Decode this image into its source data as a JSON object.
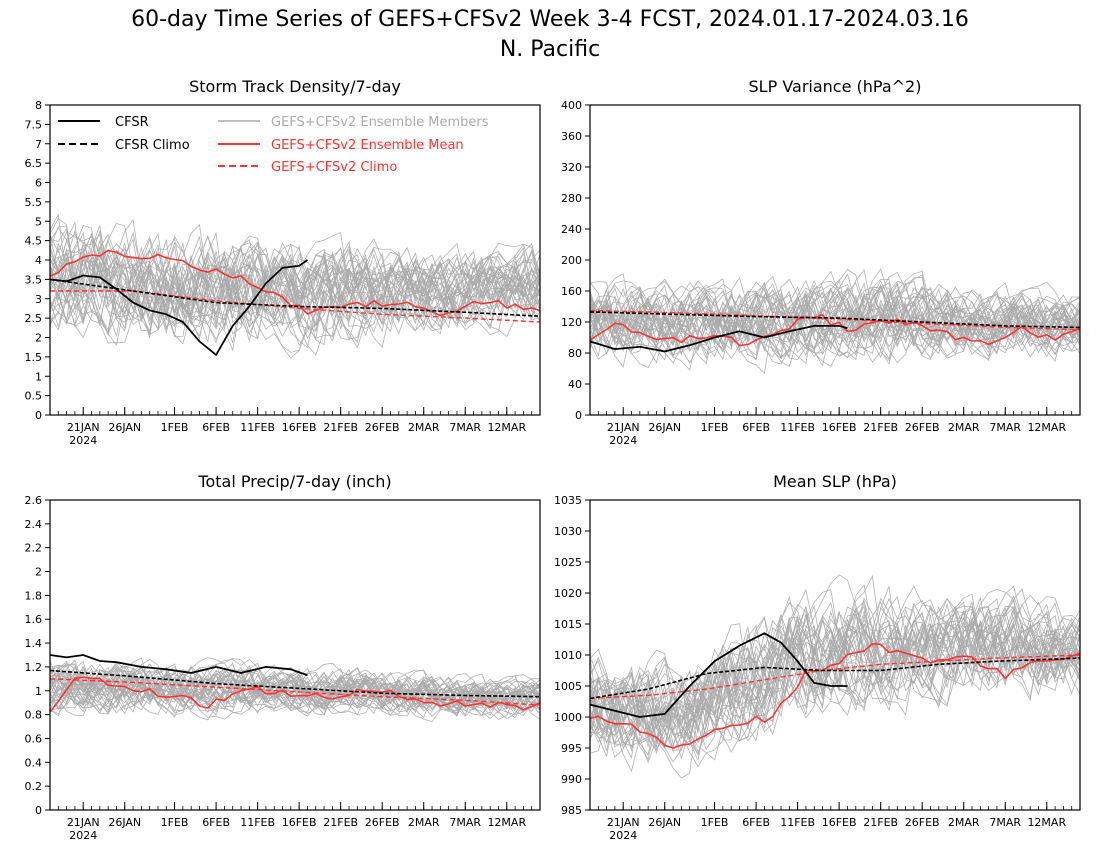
{
  "figure": {
    "title": "60-day Time Series of GEFS+CFSv2 Week 3-4 FCST, 2024.01.17-2024.03.16",
    "subtitle": "N. Pacific"
  },
  "legend": {
    "items": [
      {
        "label": "CFSR",
        "color": "#000000",
        "style": "solid"
      },
      {
        "label": "CFSR Climo",
        "color": "#000000",
        "style": "dashed"
      },
      {
        "label": "GEFS+CFSv2 Ensemble Members",
        "color": "#aaaaaa",
        "style": "solid"
      },
      {
        "label": "GEFS+CFSv2 Ensemble Mean",
        "color": "#ff3333",
        "style": "solid"
      },
      {
        "label": "GEFS+CFSv2 Climo",
        "color": "#ff3333",
        "style": "dashed"
      }
    ]
  },
  "colors": {
    "cfsr": "#000000",
    "members": "#aaaaaa",
    "ens_mean": "#ff3333",
    "ens_climo": "#ff3333"
  },
  "chart_data": [
    {
      "type": "line",
      "title": "Storm Track Density/7-day",
      "x_start": "2024-01-17",
      "x_end": "2024-03-16",
      "xticks": [
        {
          "date": "2024-01-21",
          "label": "21JAN",
          "sublabel": "2024"
        },
        {
          "date": "2024-01-26",
          "label": "26JAN"
        },
        {
          "date": "2024-02-01",
          "label": "1FEB"
        },
        {
          "date": "2024-02-06",
          "label": "6FEB"
        },
        {
          "date": "2024-02-11",
          "label": "11FEB"
        },
        {
          "date": "2024-02-16",
          "label": "16FEB"
        },
        {
          "date": "2024-02-21",
          "label": "21FEB"
        },
        {
          "date": "2024-02-26",
          "label": "26FEB"
        },
        {
          "date": "2024-03-02",
          "label": "2MAR"
        },
        {
          "date": "2024-03-07",
          "label": "7MAR"
        },
        {
          "date": "2024-03-12",
          "label": "12MAR"
        }
      ],
      "ylim": [
        0,
        8
      ],
      "yticks": [
        "0",
        "0.5",
        "1",
        "1.5",
        "2",
        "2.5",
        "3",
        "3.5",
        "4",
        "4.5",
        "5",
        "5.5",
        "6",
        "6.5",
        "7",
        "7.5",
        "8"
      ],
      "members_envelope": {
        "low": [
          1.7,
          1.4,
          1.3,
          1.4,
          1.8,
          2.0
        ],
        "high": [
          5.5,
          5.3,
          5.0,
          4.8,
          4.6,
          4.7
        ]
      },
      "series": [
        {
          "name": "CFSR",
          "x": [
            "2024-01-17",
            "2024-01-19",
            "2024-01-21",
            "2024-01-23",
            "2024-01-25",
            "2024-01-27",
            "2024-01-29",
            "2024-01-31",
            "2024-02-02",
            "2024-02-04",
            "2024-02-06",
            "2024-02-08",
            "2024-02-10",
            "2024-02-12",
            "2024-02-14",
            "2024-02-16",
            "2024-02-17"
          ],
          "values": [
            3.5,
            3.45,
            3.6,
            3.55,
            3.25,
            2.9,
            2.7,
            2.6,
            2.4,
            1.9,
            1.55,
            2.3,
            2.8,
            3.4,
            3.8,
            3.85,
            4.0
          ]
        },
        {
          "name": "CFSR Climo",
          "x": [
            "2024-01-17",
            "2024-01-27",
            "2024-02-06",
            "2024-02-16",
            "2024-02-26",
            "2024-03-07",
            "2024-03-16"
          ],
          "values": [
            3.5,
            3.2,
            2.9,
            2.8,
            2.75,
            2.65,
            2.55
          ]
        },
        {
          "name": "GEFS+CFSv2 Ensemble Mean",
          "x": [
            "2024-01-17",
            "2024-01-20",
            "2024-01-24",
            "2024-01-28",
            "2024-02-01",
            "2024-02-05",
            "2024-02-09",
            "2024-02-13",
            "2024-02-17",
            "2024-02-21",
            "2024-02-25",
            "2024-03-01",
            "2024-03-05",
            "2024-03-09",
            "2024-03-13",
            "2024-03-16"
          ],
          "values": [
            3.6,
            4.05,
            4.2,
            4.1,
            4.0,
            3.75,
            3.5,
            3.1,
            2.7,
            2.75,
            2.9,
            2.8,
            2.6,
            2.95,
            2.8,
            2.7
          ]
        },
        {
          "name": "GEFS+CFSv2 Climo",
          "x": [
            "2024-01-17",
            "2024-01-27",
            "2024-02-06",
            "2024-02-16",
            "2024-02-26",
            "2024-03-07",
            "2024-03-16"
          ],
          "values": [
            3.2,
            3.2,
            2.95,
            2.75,
            2.6,
            2.5,
            2.4
          ]
        }
      ]
    },
    {
      "type": "line",
      "title": "SLP Variance (hPa^2)",
      "x_start": "2024-01-17",
      "x_end": "2024-03-16",
      "xticks": [
        {
          "date": "2024-01-21",
          "label": "21JAN",
          "sublabel": "2024"
        },
        {
          "date": "2024-01-26",
          "label": "26JAN"
        },
        {
          "date": "2024-02-01",
          "label": "1FEB"
        },
        {
          "date": "2024-02-06",
          "label": "6FEB"
        },
        {
          "date": "2024-02-11",
          "label": "11FEB"
        },
        {
          "date": "2024-02-16",
          "label": "16FEB"
        },
        {
          "date": "2024-02-21",
          "label": "21FEB"
        },
        {
          "date": "2024-02-26",
          "label": "26FEB"
        },
        {
          "date": "2024-03-02",
          "label": "2MAR"
        },
        {
          "date": "2024-03-07",
          "label": "7MAR"
        },
        {
          "date": "2024-03-12",
          "label": "12MAR"
        }
      ],
      "ylim": [
        0,
        400
      ],
      "yticks": [
        "0",
        "40",
        "80",
        "120",
        "160",
        "200",
        "240",
        "280",
        "320",
        "360",
        "400"
      ],
      "members_envelope": {
        "low": [
          55,
          52,
          50,
          55,
          60,
          60
        ],
        "high": [
          190,
          185,
          190,
          200,
          175,
          170
        ]
      },
      "series": [
        {
          "name": "CFSR",
          "x": [
            "2024-01-17",
            "2024-01-20",
            "2024-01-23",
            "2024-01-26",
            "2024-01-29",
            "2024-02-01",
            "2024-02-04",
            "2024-02-07",
            "2024-02-10",
            "2024-02-13",
            "2024-02-16",
            "2024-02-17"
          ],
          "values": [
            95,
            85,
            88,
            82,
            90,
            100,
            108,
            100,
            108,
            115,
            115,
            112
          ]
        },
        {
          "name": "CFSR Climo",
          "x": [
            "2024-01-17",
            "2024-01-27",
            "2024-02-06",
            "2024-02-16",
            "2024-02-26",
            "2024-03-07",
            "2024-03-16"
          ],
          "values": [
            133,
            130,
            127,
            125,
            120,
            115,
            113
          ]
        },
        {
          "name": "GEFS+CFSv2 Ensemble Mean",
          "x": [
            "2024-01-17",
            "2024-01-20",
            "2024-01-24",
            "2024-01-28",
            "2024-02-01",
            "2024-02-05",
            "2024-02-09",
            "2024-02-13",
            "2024-02-17",
            "2024-02-21",
            "2024-02-25",
            "2024-03-01",
            "2024-03-05",
            "2024-03-09",
            "2024-03-13",
            "2024-03-16"
          ],
          "values": [
            95,
            122,
            100,
            98,
            105,
            90,
            108,
            130,
            110,
            122,
            118,
            102,
            95,
            110,
            100,
            110
          ]
        },
        {
          "name": "GEFS+CFSv2 Climo",
          "x": [
            "2024-01-17",
            "2024-01-27",
            "2024-02-06",
            "2024-02-16",
            "2024-02-26",
            "2024-03-07",
            "2024-03-16"
          ],
          "values": [
            135,
            132,
            128,
            124,
            118,
            113,
            110
          ]
        }
      ]
    },
    {
      "type": "line",
      "title": "Total Precip/7-day (inch)",
      "x_start": "2024-01-17",
      "x_end": "2024-03-16",
      "xticks": [
        {
          "date": "2024-01-21",
          "label": "21JAN",
          "sublabel": "2024"
        },
        {
          "date": "2024-01-26",
          "label": "26JAN"
        },
        {
          "date": "2024-02-01",
          "label": "1FEB"
        },
        {
          "date": "2024-02-06",
          "label": "6FEB"
        },
        {
          "date": "2024-02-11",
          "label": "11FEB"
        },
        {
          "date": "2024-02-16",
          "label": "16FEB"
        },
        {
          "date": "2024-02-21",
          "label": "21FEB"
        },
        {
          "date": "2024-02-26",
          "label": "26FEB"
        },
        {
          "date": "2024-03-02",
          "label": "2MAR"
        },
        {
          "date": "2024-03-07",
          "label": "7MAR"
        },
        {
          "date": "2024-03-12",
          "label": "12MAR"
        }
      ],
      "ylim": [
        0,
        2.6
      ],
      "yticks": [
        "0",
        "0.2",
        "0.4",
        "0.6",
        "0.8",
        "1",
        "1.2",
        "1.4",
        "1.6",
        "1.8",
        "2",
        "2.2",
        "2.4",
        "2.6"
      ],
      "members_envelope": {
        "low": [
          0.72,
          0.72,
          0.74,
          0.74,
          0.72,
          0.72
        ],
        "high": [
          1.35,
          1.3,
          1.3,
          1.25,
          1.2,
          1.15
        ]
      },
      "series": [
        {
          "name": "CFSR",
          "x": [
            "2024-01-17",
            "2024-01-19",
            "2024-01-21",
            "2024-01-23",
            "2024-01-25",
            "2024-01-28",
            "2024-01-31",
            "2024-02-03",
            "2024-02-06",
            "2024-02-09",
            "2024-02-12",
            "2024-02-15",
            "2024-02-17"
          ],
          "values": [
            1.3,
            1.28,
            1.3,
            1.25,
            1.24,
            1.2,
            1.18,
            1.15,
            1.2,
            1.15,
            1.2,
            1.18,
            1.13
          ]
        },
        {
          "name": "CFSR Climo",
          "x": [
            "2024-01-17",
            "2024-01-27",
            "2024-02-06",
            "2024-02-16",
            "2024-02-26",
            "2024-03-07",
            "2024-03-16"
          ],
          "values": [
            1.17,
            1.12,
            1.06,
            1.02,
            0.98,
            0.96,
            0.95
          ]
        },
        {
          "name": "GEFS+CFSv2 Ensemble Mean",
          "x": [
            "2024-01-17",
            "2024-01-20",
            "2024-01-24",
            "2024-01-28",
            "2024-02-01",
            "2024-02-05",
            "2024-02-09",
            "2024-02-13",
            "2024-02-17",
            "2024-02-21",
            "2024-02-25",
            "2024-03-01",
            "2024-03-05",
            "2024-03-09",
            "2024-03-13",
            "2024-03-16"
          ],
          "values": [
            0.85,
            1.12,
            1.06,
            1.0,
            0.95,
            0.88,
            1.02,
            1.0,
            0.96,
            0.96,
            1.0,
            0.94,
            0.88,
            0.9,
            0.86,
            0.88
          ]
        },
        {
          "name": "GEFS+CFSv2 Climo",
          "x": [
            "2024-01-17",
            "2024-01-27",
            "2024-02-06",
            "2024-02-16",
            "2024-02-26",
            "2024-03-07",
            "2024-03-16"
          ],
          "values": [
            1.1,
            1.07,
            1.03,
            0.99,
            0.95,
            0.92,
            0.88
          ]
        }
      ]
    },
    {
      "type": "line",
      "title": "Mean SLP (hPa)",
      "x_start": "2024-01-17",
      "x_end": "2024-03-16",
      "xticks": [
        {
          "date": "2024-01-21",
          "label": "21JAN",
          "sublabel": "2024"
        },
        {
          "date": "2024-01-26",
          "label": "26JAN"
        },
        {
          "date": "2024-02-01",
          "label": "1FEB"
        },
        {
          "date": "2024-02-06",
          "label": "6FEB"
        },
        {
          "date": "2024-02-11",
          "label": "11FEB"
        },
        {
          "date": "2024-02-16",
          "label": "16FEB"
        },
        {
          "date": "2024-02-21",
          "label": "21FEB"
        },
        {
          "date": "2024-02-26",
          "label": "26FEB"
        },
        {
          "date": "2024-03-02",
          "label": "2MAR"
        },
        {
          "date": "2024-03-07",
          "label": "7MAR"
        },
        {
          "date": "2024-03-12",
          "label": "12MAR"
        }
      ],
      "ylim": [
        985,
        1035
      ],
      "yticks": [
        "985",
        "990",
        "995",
        "1000",
        "1005",
        "1010",
        "1015",
        "1020",
        "1025",
        "1030",
        "1035"
      ],
      "members_envelope": {
        "low": [
          990,
          989,
          996,
          999,
          1000,
          1001
        ],
        "high": [
          1014,
          1012,
          1022,
          1024,
          1022,
          1020
        ]
      },
      "series": [
        {
          "name": "CFSR",
          "x": [
            "2024-01-17",
            "2024-01-20",
            "2024-01-23",
            "2024-01-26",
            "2024-01-29",
            "2024-02-01",
            "2024-02-04",
            "2024-02-07",
            "2024-02-09",
            "2024-02-11",
            "2024-02-13",
            "2024-02-15",
            "2024-02-17"
          ],
          "values": [
            1002,
            1001,
            1000,
            1000.5,
            1005,
            1009,
            1011.5,
            1013.5,
            1012,
            1009,
            1005.5,
            1005,
            1005
          ]
        },
        {
          "name": "CFSR Climo",
          "x": [
            "2024-01-17",
            "2024-01-24",
            "2024-01-31",
            "2024-02-07",
            "2024-02-14",
            "2024-02-21",
            "2024-02-28",
            "2024-03-06",
            "2024-03-16"
          ],
          "values": [
            1003,
            1004.5,
            1007,
            1008,
            1007.5,
            1007.5,
            1008.5,
            1009,
            1009.5
          ]
        },
        {
          "name": "GEFS+CFSv2 Ensemble Mean",
          "x": [
            "2024-01-17",
            "2024-01-20",
            "2024-01-23",
            "2024-01-27",
            "2024-01-31",
            "2024-02-04",
            "2024-02-08",
            "2024-02-12",
            "2024-02-16",
            "2024-02-20",
            "2024-02-24",
            "2024-02-28",
            "2024-03-03",
            "2024-03-07",
            "2024-03-11",
            "2024-03-16"
          ],
          "values": [
            1000,
            999,
            998,
            994.5,
            997,
            999,
            1000,
            1007,
            1009,
            1011.5,
            1010,
            1009,
            1009.5,
            1006.5,
            1009,
            1010.5
          ]
        },
        {
          "name": "GEFS+CFSv2 Climo",
          "x": [
            "2024-01-17",
            "2024-01-24",
            "2024-01-31",
            "2024-02-07",
            "2024-02-14",
            "2024-02-21",
            "2024-02-28",
            "2024-03-06",
            "2024-03-16"
          ],
          "values": [
            1003,
            1003.5,
            1004.5,
            1006,
            1007.5,
            1008.5,
            1009,
            1009.5,
            1010
          ]
        }
      ]
    }
  ]
}
